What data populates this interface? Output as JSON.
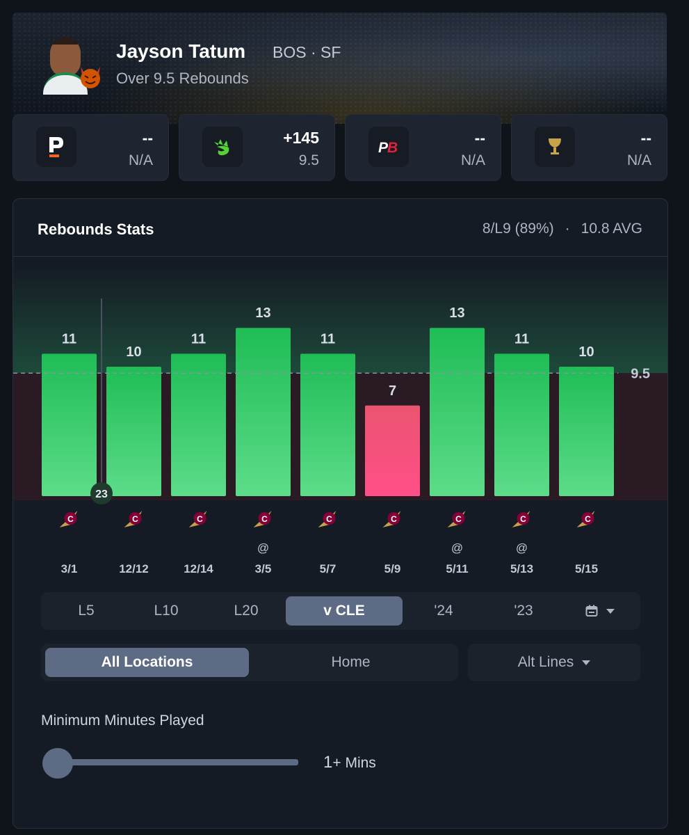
{
  "player": {
    "name": "Jayson Tatum",
    "team_position": "BOS · SF",
    "prop": "Over 9.5 Rebounds",
    "avatar_icon": "player-headshot",
    "badge_icon": "devil-emoji-icon"
  },
  "books": [
    {
      "name": "prizepicks",
      "icon": "p-logo-icon",
      "odds": "--",
      "line": "N/A"
    },
    {
      "name": "draftkings",
      "icon": "dk-crown-icon",
      "odds": "+145",
      "line": "9.5"
    },
    {
      "name": "pointsbet",
      "icon": "pb-logo-icon",
      "odds": "--",
      "line": "N/A"
    },
    {
      "name": "underdog",
      "icon": "chalice-icon",
      "odds": "--",
      "line": "N/A"
    }
  ],
  "stats": {
    "title": "Rebounds Stats",
    "hit_rate": "8/L9 (89%)",
    "separator": "·",
    "average": "10.8 AVG"
  },
  "chart_data": {
    "type": "bar",
    "categories": [
      "3/1",
      "12/12",
      "12/14",
      "3/5",
      "5/7",
      "5/9",
      "5/11",
      "5/13",
      "5/15"
    ],
    "values": [
      11,
      10,
      11,
      13,
      11,
      7,
      13,
      11,
      10
    ],
    "away": [
      false,
      false,
      false,
      true,
      false,
      false,
      true,
      true,
      false
    ],
    "away_marker": "@",
    "line": 9.5,
    "line_label": "9.5",
    "opponent_icon": "cavaliers-logo-icon",
    "season_marker": {
      "index": 0,
      "label": "23"
    },
    "ylim": [
      0,
      15
    ],
    "colors": {
      "over": "#22c55e",
      "under": "#f0567a",
      "over_zone": "#17382c",
      "under_zone": "#2a1a24"
    }
  },
  "range_tabs": [
    "L5",
    "L10",
    "L20",
    "v CLE",
    "'24",
    "'23"
  ],
  "range_active": "v CLE",
  "calendar_icon": "calendar-icon",
  "location_tabs": [
    "All Locations",
    "Home"
  ],
  "location_active": "All Locations",
  "alt_lines": "Alt Lines",
  "minutes": {
    "label": "Minimum Minutes Played",
    "value": "1",
    "unit": "+ Mins",
    "slider_fraction": 0
  }
}
